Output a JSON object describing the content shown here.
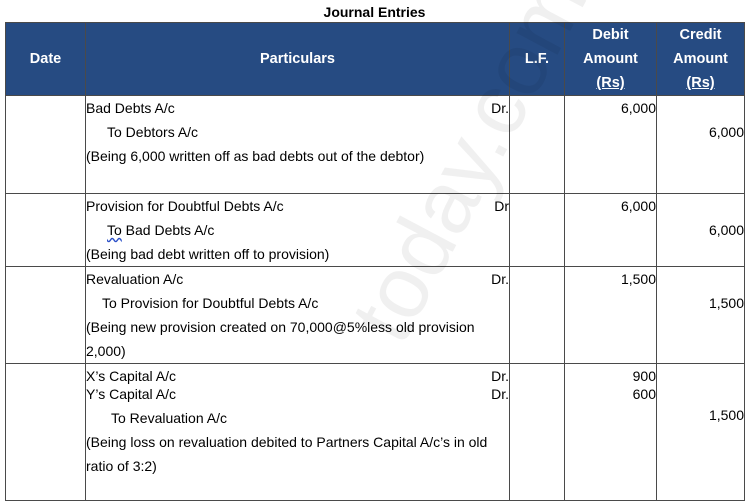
{
  "title": "Journal Entries",
  "headers": {
    "date": "Date",
    "particulars": "Particulars",
    "lf": "L.F.",
    "debit_l1": "Debit",
    "debit_l2": "Amount",
    "debit_l3": "(Rs)",
    "credit_l1": "Credit",
    "credit_l2": "Amount",
    "credit_l3": "(Rs)"
  },
  "entries": [
    {
      "debit_account": "Bad Debts A/c",
      "dr_mark": "Dr.",
      "credit_account": "To Debtors A/c",
      "narration": "(Being 6,000 written off as bad debts out of the debtor)",
      "debit_amount": "6,000",
      "credit_amount": "6,000"
    },
    {
      "debit_account": "Provision for Doubtful Debts A/c",
      "dr_mark": "Dr",
      "credit_account_prefix": "To",
      "credit_account_rest": " Bad Debts A/c",
      "narration": "(Being bad debt written off to provision)",
      "debit_amount": "6,000",
      "credit_amount": "6,000"
    },
    {
      "debit_account": "Revaluation A/c",
      "dr_mark": "Dr.",
      "credit_account": "To Provision for Doubtful Debts A/c",
      "narration": "(Being new provision created on 70,000@5%less old provision 2,000)",
      "debit_amount": "1,500",
      "credit_amount": "1,500"
    },
    {
      "debit_account_1": "X’s Capital A/c",
      "dr_mark_1": "Dr.",
      "debit_amount_1": "900",
      "debit_account_2": "Y’s Capital A/c",
      "dr_mark_2": "Dr.",
      "debit_amount_2": "600",
      "credit_account": "To Revaluation A/c",
      "narration": "(Being loss on revaluation debited to Partners Capital A/c’s in old ratio of 3:2)",
      "credit_amount": "1,500"
    }
  ],
  "watermark": "today.com"
}
